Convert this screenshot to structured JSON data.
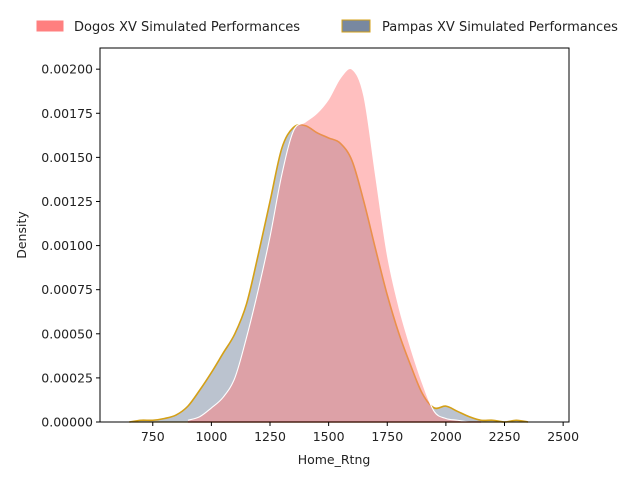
{
  "chart_data": {
    "type": "area",
    "xlabel": "Home_Rtng",
    "ylabel": "Density",
    "xlim": [
      525,
      2525
    ],
    "ylim": [
      0,
      0.00212
    ],
    "x_ticks": [
      750,
      1000,
      1250,
      1500,
      1750,
      2000,
      2250,
      2500
    ],
    "x_tick_labels": [
      "750",
      "1000",
      "1250",
      "1500",
      "1750",
      "2000",
      "2250",
      "2500"
    ],
    "y_ticks": [
      0,
      0.00025,
      0.0005,
      0.00075,
      0.001,
      0.00125,
      0.0015,
      0.00175,
      0.002
    ],
    "y_tick_labels": [
      "0.00000",
      "0.00025",
      "0.00050",
      "0.00075",
      "0.00100",
      "0.00125",
      "0.00150",
      "0.00175",
      "0.00200"
    ],
    "legend_position": "top (above plot)",
    "series": [
      {
        "name": "Dogos XV Simulated Performances",
        "fill_color": "#ff7f7f",
        "edge_color": "#ffffff",
        "x": [
          900,
          950,
          1000,
          1050,
          1100,
          1150,
          1200,
          1250,
          1300,
          1350,
          1400,
          1450,
          1500,
          1550,
          1600,
          1650,
          1700,
          1750,
          1800,
          1850,
          1900,
          1950,
          2000,
          2050,
          2100,
          2150
        ],
        "y": [
          1e-05,
          3e-05,
          8e-05,
          0.00014,
          0.00025,
          0.00048,
          0.00075,
          0.00105,
          0.0014,
          0.00165,
          0.0017,
          0.00175,
          0.00183,
          0.00195,
          0.002,
          0.00185,
          0.0014,
          0.00095,
          0.00065,
          0.00042,
          0.00022,
          6e-05,
          2e-05,
          1e-05,
          0.0,
          0.0
        ]
      },
      {
        "name": "Pampas XV Simulated Performances",
        "fill_color": "#7888a0",
        "edge_color": "#d4a017",
        "x": [
          650,
          700,
          750,
          800,
          850,
          900,
          950,
          1000,
          1050,
          1100,
          1150,
          1200,
          1250,
          1300,
          1350,
          1400,
          1450,
          1500,
          1550,
          1600,
          1650,
          1700,
          1750,
          1800,
          1850,
          1900,
          1950,
          2000,
          2050,
          2100,
          2150,
          2200,
          2250,
          2300,
          2350
        ],
        "y": [
          0.0,
          1e-05,
          1e-05,
          2e-05,
          4e-05,
          9e-05,
          0.00018,
          0.00028,
          0.00039,
          0.0005,
          0.00067,
          0.00095,
          0.00125,
          0.00155,
          0.00167,
          0.00168,
          0.00164,
          0.00161,
          0.00158,
          0.00148,
          0.00125,
          0.00098,
          0.00072,
          0.0005,
          0.00032,
          0.00016,
          8e-05,
          9e-05,
          6e-05,
          3e-05,
          1e-05,
          1e-05,
          0.0,
          1e-05,
          0.0
        ]
      }
    ]
  }
}
